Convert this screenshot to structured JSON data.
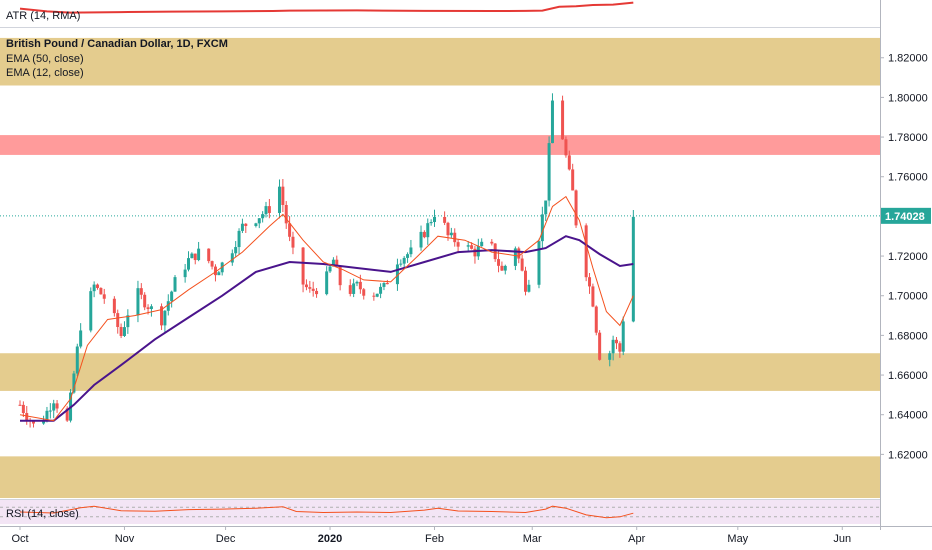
{
  "chart_data": {
    "type": "candlestick",
    "title": "British Pound / Canadian Dollar, 1D, FXCM",
    "last_price": "1.74028",
    "ylim": [
      1.598,
      1.835
    ],
    "y_ticks": [
      "1.82000",
      "1.80000",
      "1.78000",
      "1.76000",
      "1.74000",
      "1.72000",
      "1.70000",
      "1.68000",
      "1.66000",
      "1.64000",
      "1.62000"
    ],
    "x_ticks": [
      {
        "label": "Oct",
        "day": 0
      },
      {
        "label": "Nov",
        "day": 31
      },
      {
        "label": "Dec",
        "day": 61
      },
      {
        "label": "2020",
        "day": 92,
        "bold": true
      },
      {
        "label": "Feb",
        "day": 123
      },
      {
        "label": "Mar",
        "day": 152
      },
      {
        "label": "Apr",
        "day": 183
      },
      {
        "label": "May",
        "day": 213
      },
      {
        "label": "Jun",
        "day": 244
      }
    ],
    "legend": [
      "EMA (50, close)",
      "EMA (12, close)"
    ],
    "colors": {
      "up": "#26a69a",
      "down": "#ef5350",
      "ema50": "#4a148c",
      "ema12": "#f4511e",
      "zone_tan": "#e4cc8e",
      "zone_red": "#ff9b9b",
      "rsi_bg": "#f3e5f5",
      "atr": "#e53935"
    },
    "zones": [
      {
        "kind": "tan",
        "from": 1.806,
        "to": 1.83
      },
      {
        "kind": "red",
        "from": 1.771,
        "to": 1.781
      },
      {
        "kind": "tan",
        "from": 1.652,
        "to": 1.671
      },
      {
        "kind": "tan",
        "from": 1.598,
        "to": 1.619
      }
    ],
    "anchors": [
      {
        "day": 0,
        "close": 1.645
      },
      {
        "day": 5,
        "close": 1.632
      },
      {
        "day": 10,
        "close": 1.648
      },
      {
        "day": 14,
        "close": 1.636
      },
      {
        "day": 18,
        "close": 1.685
      },
      {
        "day": 22,
        "close": 1.705
      },
      {
        "day": 26,
        "close": 1.697
      },
      {
        "day": 30,
        "close": 1.68
      },
      {
        "day": 34,
        "close": 1.703
      },
      {
        "day": 38,
        "close": 1.695
      },
      {
        "day": 42,
        "close": 1.688
      },
      {
        "day": 46,
        "close": 1.707
      },
      {
        "day": 50,
        "close": 1.718
      },
      {
        "day": 54,
        "close": 1.723
      },
      {
        "day": 58,
        "close": 1.712
      },
      {
        "day": 62,
        "close": 1.72
      },
      {
        "day": 66,
        "close": 1.735
      },
      {
        "day": 70,
        "close": 1.739
      },
      {
        "day": 74,
        "close": 1.744
      },
      {
        "day": 77,
        "close": 1.755
      },
      {
        "day": 80,
        "close": 1.728
      },
      {
        "day": 83,
        "close": 1.708
      },
      {
        "day": 86,
        "close": 1.702
      },
      {
        "day": 90,
        "close": 1.705
      },
      {
        "day": 93,
        "close": 1.718
      },
      {
        "day": 96,
        "close": 1.7
      },
      {
        "day": 100,
        "close": 1.705
      },
      {
        "day": 104,
        "close": 1.7
      },
      {
        "day": 108,
        "close": 1.704
      },
      {
        "day": 112,
        "close": 1.718
      },
      {
        "day": 116,
        "close": 1.722
      },
      {
        "day": 120,
        "close": 1.732
      },
      {
        "day": 124,
        "close": 1.745
      },
      {
        "day": 127,
        "close": 1.73
      },
      {
        "day": 131,
        "close": 1.726
      },
      {
        "day": 135,
        "close": 1.722
      },
      {
        "day": 139,
        "close": 1.728
      },
      {
        "day": 143,
        "close": 1.712
      },
      {
        "day": 147,
        "close": 1.725
      },
      {
        "day": 150,
        "close": 1.705
      },
      {
        "day": 152,
        "close": 1.712
      },
      {
        "day": 154,
        "close": 1.73
      },
      {
        "day": 156,
        "close": 1.75
      },
      {
        "day": 158,
        "close": 1.798
      },
      {
        "day": 160,
        "close": 1.79
      },
      {
        "day": 162,
        "close": 1.77
      },
      {
        "day": 164,
        "close": 1.752
      },
      {
        "day": 166,
        "close": 1.722
      },
      {
        "day": 168,
        "close": 1.712
      },
      {
        "day": 170,
        "close": 1.697
      },
      {
        "day": 172,
        "close": 1.67
      },
      {
        "day": 174,
        "close": 1.665
      },
      {
        "day": 176,
        "close": 1.678
      },
      {
        "day": 178,
        "close": 1.672
      },
      {
        "day": 180,
        "close": 1.705
      },
      {
        "day": 181,
        "close": 1.716
      },
      {
        "day": 182,
        "close": 1.74
      }
    ],
    "ema50": [
      {
        "day": 0,
        "value": 1.637
      },
      {
        "day": 10,
        "value": 1.637
      },
      {
        "day": 16,
        "value": 1.645
      },
      {
        "day": 22,
        "value": 1.655
      },
      {
        "day": 30,
        "value": 1.665
      },
      {
        "day": 40,
        "value": 1.678
      },
      {
        "day": 50,
        "value": 1.689
      },
      {
        "day": 60,
        "value": 1.7
      },
      {
        "day": 70,
        "value": 1.712
      },
      {
        "day": 80,
        "value": 1.717
      },
      {
        "day": 90,
        "value": 1.716
      },
      {
        "day": 100,
        "value": 1.714
      },
      {
        "day": 110,
        "value": 1.712
      },
      {
        "day": 120,
        "value": 1.717
      },
      {
        "day": 130,
        "value": 1.722
      },
      {
        "day": 140,
        "value": 1.723
      },
      {
        "day": 150,
        "value": 1.722
      },
      {
        "day": 156,
        "value": 1.724
      },
      {
        "day": 162,
        "value": 1.73
      },
      {
        "day": 166,
        "value": 1.728
      },
      {
        "day": 172,
        "value": 1.721
      },
      {
        "day": 178,
        "value": 1.715
      },
      {
        "day": 182,
        "value": 1.716
      }
    ],
    "ema12": [
      {
        "day": 0,
        "value": 1.64
      },
      {
        "day": 10,
        "value": 1.637
      },
      {
        "day": 15,
        "value": 1.648
      },
      {
        "day": 20,
        "value": 1.675
      },
      {
        "day": 26,
        "value": 1.688
      },
      {
        "day": 34,
        "value": 1.69
      },
      {
        "day": 42,
        "value": 1.693
      },
      {
        "day": 50,
        "value": 1.703
      },
      {
        "day": 58,
        "value": 1.712
      },
      {
        "day": 66,
        "value": 1.722
      },
      {
        "day": 74,
        "value": 1.735
      },
      {
        "day": 78,
        "value": 1.741
      },
      {
        "day": 84,
        "value": 1.728
      },
      {
        "day": 90,
        "value": 1.717
      },
      {
        "day": 96,
        "value": 1.713
      },
      {
        "day": 102,
        "value": 1.708
      },
      {
        "day": 110,
        "value": 1.707
      },
      {
        "day": 118,
        "value": 1.72
      },
      {
        "day": 124,
        "value": 1.73
      },
      {
        "day": 132,
        "value": 1.728
      },
      {
        "day": 140,
        "value": 1.722
      },
      {
        "day": 148,
        "value": 1.72
      },
      {
        "day": 154,
        "value": 1.728
      },
      {
        "day": 158,
        "value": 1.745
      },
      {
        "day": 162,
        "value": 1.75
      },
      {
        "day": 166,
        "value": 1.738
      },
      {
        "day": 170,
        "value": 1.714
      },
      {
        "day": 174,
        "value": 1.692
      },
      {
        "day": 178,
        "value": 1.685
      },
      {
        "day": 182,
        "value": 1.7
      }
    ],
    "atr": {
      "label": "ATR (14, RMA)",
      "points": [
        {
          "day": 0,
          "value": 0.55
        },
        {
          "day": 8,
          "value": 0.78
        },
        {
          "day": 15,
          "value": 0.88
        },
        {
          "day": 30,
          "value": 0.84
        },
        {
          "day": 45,
          "value": 0.8
        },
        {
          "day": 60,
          "value": 0.78
        },
        {
          "day": 75,
          "value": 0.75
        },
        {
          "day": 80,
          "value": 0.72
        },
        {
          "day": 100,
          "value": 0.7
        },
        {
          "day": 120,
          "value": 0.74
        },
        {
          "day": 140,
          "value": 0.75
        },
        {
          "day": 150,
          "value": 0.74
        },
        {
          "day": 155,
          "value": 0.72
        },
        {
          "day": 160,
          "value": 0.4
        },
        {
          "day": 165,
          "value": 0.36
        },
        {
          "day": 170,
          "value": 0.25
        },
        {
          "day": 176,
          "value": 0.22
        },
        {
          "day": 182,
          "value": 0.05
        }
      ]
    },
    "rsi": {
      "label": "RSI (14, close)",
      "points": [
        {
          "day": 0,
          "value": 50
        },
        {
          "day": 10,
          "value": 46
        },
        {
          "day": 18,
          "value": 68
        },
        {
          "day": 22,
          "value": 74
        },
        {
          "day": 30,
          "value": 55
        },
        {
          "day": 40,
          "value": 53
        },
        {
          "day": 50,
          "value": 60
        },
        {
          "day": 60,
          "value": 62
        },
        {
          "day": 70,
          "value": 66
        },
        {
          "day": 78,
          "value": 72
        },
        {
          "day": 82,
          "value": 52
        },
        {
          "day": 90,
          "value": 48
        },
        {
          "day": 100,
          "value": 50
        },
        {
          "day": 110,
          "value": 48
        },
        {
          "day": 120,
          "value": 58
        },
        {
          "day": 124,
          "value": 66
        },
        {
          "day": 130,
          "value": 54
        },
        {
          "day": 140,
          "value": 52
        },
        {
          "day": 150,
          "value": 48
        },
        {
          "day": 156,
          "value": 62
        },
        {
          "day": 158,
          "value": 74
        },
        {
          "day": 162,
          "value": 66
        },
        {
          "day": 168,
          "value": 38
        },
        {
          "day": 174,
          "value": 26
        },
        {
          "day": 178,
          "value": 30
        },
        {
          "day": 182,
          "value": 45
        }
      ]
    }
  }
}
